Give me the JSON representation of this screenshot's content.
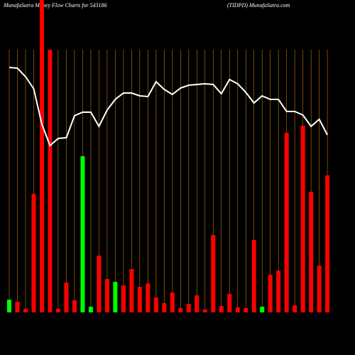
{
  "chart_data": {
    "type": "bar-line",
    "title": "MunafaSutra  Money Flow  Charts for 543186",
    "subtitle": "(TIDPD) MunafaSutra.com",
    "categories": [
      null,
      null,
      null,
      null,
      null,
      null,
      null,
      null,
      null,
      null,
      null,
      null,
      null,
      null,
      null,
      null,
      null,
      null,
      null,
      null,
      null,
      null,
      null,
      null,
      null,
      null,
      null,
      null,
      null,
      null,
      null,
      null,
      null,
      null,
      null,
      null,
      null,
      null,
      null,
      null
    ],
    "bars": {
      "values": [
        18,
        15,
        5,
        167,
        445,
        370,
        5,
        42,
        17,
        220,
        8,
        80,
        47,
        43,
        38,
        61,
        36,
        41,
        21,
        13,
        28,
        6,
        12,
        24,
        4,
        109,
        9,
        26,
        7,
        6,
        102,
        8,
        53,
        59,
        253,
        10,
        263,
        170,
        66,
        193
      ],
      "colors": [
        "#00ff00",
        "#ff0000",
        "#ff0000",
        "#ff0000",
        "#ff0000",
        "#ff0000",
        "#ff0000",
        "#ff0000",
        "#ff0000",
        "#00ff00",
        "#00ff00",
        "#ff0000",
        "#ff0000",
        "#00ff00",
        "#ff0000",
        "#ff0000",
        "#ff0000",
        "#ff0000",
        "#ff0000",
        "#ff0000",
        "#ff0000",
        "#ff0000",
        "#ff0000",
        "#ff0000",
        "#ff0000",
        "#ff0000",
        "#ff0000",
        "#ff0000",
        "#ff0000",
        "#ff0000",
        "#ff0000",
        "#00ff00",
        "#ff0000",
        "#ff0000",
        "#ff0000",
        "#ff0000",
        "#ff0000",
        "#ff0000",
        "#ff0000",
        "#ff0000"
      ]
    },
    "line": {
      "color": "#ffffff",
      "values": [
        345,
        344,
        332,
        315,
        265,
        235,
        245,
        246,
        277,
        282,
        282,
        262,
        285,
        300,
        309,
        309,
        305,
        304,
        325,
        314,
        307,
        316,
        320,
        321,
        322,
        321,
        308,
        328,
        322,
        310,
        295,
        305,
        300,
        300,
        283,
        283,
        278,
        262,
        272,
        250
      ]
    },
    "ylim": [
      0,
      440
    ],
    "grid_color": "#c87800"
  }
}
